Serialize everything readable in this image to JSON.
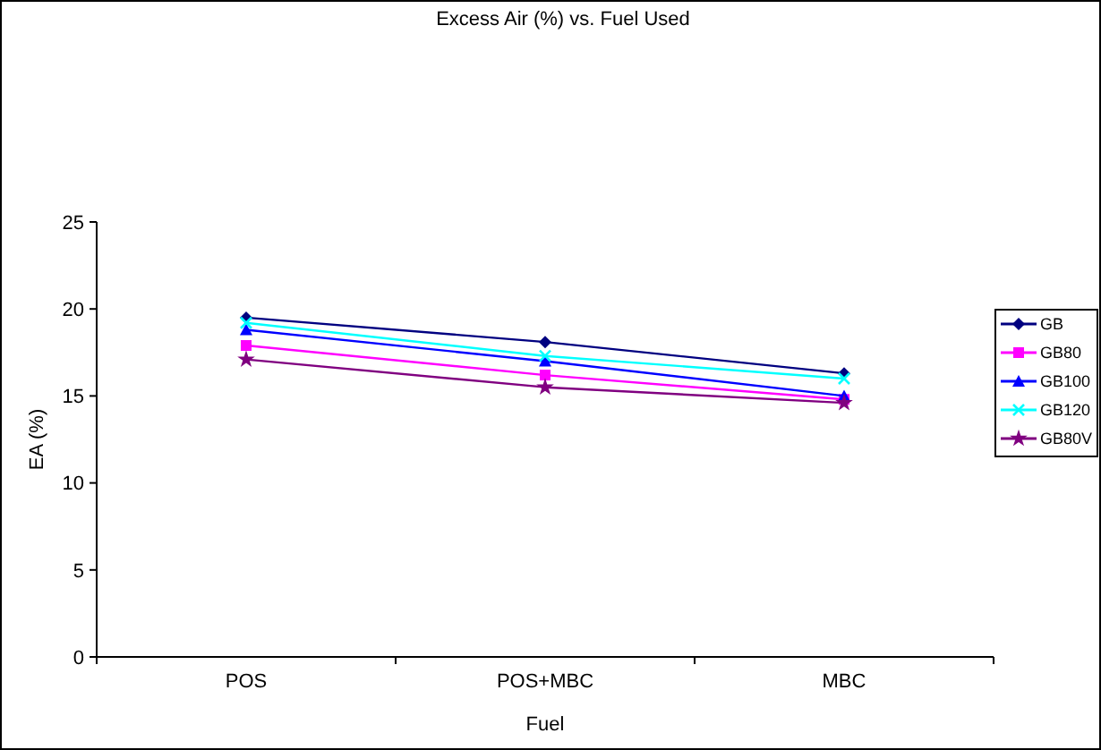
{
  "chart_data": {
    "type": "line",
    "title": "Excess Air (%) vs. Fuel Used",
    "xlabel": "Fuel",
    "ylabel": "EA (%)",
    "categories": [
      "POS",
      "POS+MBC",
      "MBC"
    ],
    "ylim": [
      0,
      25
    ],
    "yticks": [
      0,
      5,
      10,
      15,
      20,
      25
    ],
    "grid": false,
    "legend": "right",
    "series": [
      {
        "name": "GB",
        "color": "#000080",
        "marker": "diamond",
        "values": [
          19.5,
          18.1,
          16.3
        ]
      },
      {
        "name": "GB80",
        "color": "#ff00ff",
        "marker": "square",
        "values": [
          17.9,
          16.2,
          14.8
        ]
      },
      {
        "name": "GB100",
        "color": "#0000ff",
        "marker": "triangle",
        "values": [
          18.8,
          17.0,
          15.0
        ]
      },
      {
        "name": "GB120",
        "color": "#00ffff",
        "marker": "cross",
        "values": [
          19.2,
          17.3,
          16.0
        ]
      },
      {
        "name": "GB80V",
        "color": "#800080",
        "marker": "star",
        "values": [
          17.1,
          15.5,
          14.6
        ]
      }
    ]
  }
}
